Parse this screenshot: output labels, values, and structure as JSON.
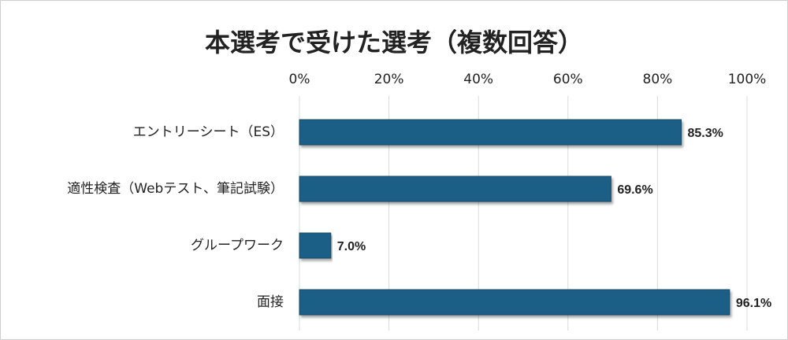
{
  "chart_data": {
    "type": "barh",
    "title": "本選考で受けた選考（複数回答）",
    "categories": [
      "エントリーシート（ES）",
      "適性検査（Webテスト、筆記試験）",
      "グループワーク",
      "面接"
    ],
    "values": [
      85.3,
      69.6,
      7.0,
      96.1
    ],
    "value_labels": [
      "85.3%",
      "69.6%",
      "7.0%",
      "96.1%"
    ],
    "color": "#1f5f86",
    "xlim": [
      0,
      100
    ],
    "xticks": [
      {
        "value": 0,
        "label": "0%"
      },
      {
        "value": 20,
        "label": "20%"
      },
      {
        "value": 40,
        "label": "40%"
      },
      {
        "value": 60,
        "label": "60%"
      },
      {
        "value": 80,
        "label": "80%"
      },
      {
        "value": 100,
        "label": "100%"
      }
    ],
    "grid": true
  }
}
